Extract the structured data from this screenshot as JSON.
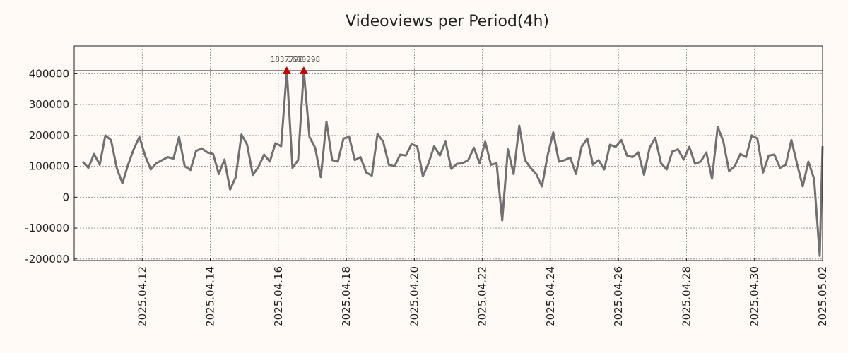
{
  "chart_data": {
    "type": "line",
    "title": "Videoviews per Period(4h)",
    "xlabel": "",
    "ylabel": "",
    "x_start": "2025.04.10 06:00",
    "x_step_hours": 4,
    "xlim": [
      "2025.04.10 00:00",
      "2025.05.02 00:00"
    ],
    "ylim": [
      -205000,
      490000
    ],
    "x_tick_labels": [
      "2025.04.12",
      "2025.04.14",
      "2025.04.16",
      "2025.04.18",
      "2025.04.20",
      "2025.04.22",
      "2025.04.24",
      "2025.04.26",
      "2025.04.28",
      "2025.04.30",
      "2025.05.02"
    ],
    "y_ticks": [
      400000,
      300000,
      200000,
      100000,
      0,
      -100000,
      -200000
    ],
    "y_tick_labels": [
      "400000",
      "300000",
      "200000",
      "100000",
      "0",
      "-100000",
      "-200000"
    ],
    "reference_line_y": 410000,
    "grid": true,
    "legend": "none",
    "series": [
      {
        "color": "#707070",
        "values": [
          115000,
          95000,
          140000,
          105000,
          200000,
          185000,
          95000,
          45000,
          105000,
          155000,
          195000,
          135000,
          90000,
          110000,
          120000,
          130000,
          125000,
          195000,
          100000,
          88000,
          150000,
          158000,
          145000,
          140000,
          75000,
          122000,
          25000,
          65000,
          203000,
          170000,
          72000,
          98000,
          138000,
          115000,
          175000,
          165000,
          410000,
          95000,
          120000,
          410000,
          195000,
          160000,
          65000,
          245000,
          120000,
          115000,
          190000,
          195000,
          120000,
          130000,
          80000,
          70000,
          205000,
          180000,
          105000,
          100000,
          138000,
          135000,
          172000,
          165000,
          68000,
          110000,
          165000,
          135000,
          180000,
          92000,
          108000,
          110000,
          120000,
          160000,
          110000,
          180000,
          105000,
          110000,
          -75000,
          155000,
          75000,
          232000,
          120000,
          95000,
          75000,
          35000,
          135000,
          210000,
          115000,
          120000,
          128000,
          75000,
          163000,
          190000,
          105000,
          120000,
          90000,
          170000,
          163000,
          185000,
          135000,
          130000,
          145000,
          72000,
          160000,
          192000,
          110000,
          90000,
          148000,
          155000,
          122000,
          163000,
          108000,
          115000,
          145000,
          60000,
          228000,
          180000,
          85000,
          100000,
          140000,
          130000,
          200000,
          190000,
          80000,
          135000,
          138000,
          95000,
          105000,
          185000,
          108000,
          35000,
          115000,
          60000,
          -190000,
          165000
        ]
      }
    ],
    "annotations": [
      {
        "text": "1837798",
        "x_index": 36,
        "y": 410000,
        "marker": "triangle-up",
        "color": "#cc0000"
      },
      {
        "text": "1600298",
        "x_index": 39,
        "y": 410000,
        "marker": "triangle-up",
        "color": "#cc0000"
      }
    ],
    "colors": {
      "background": "#fffaf5",
      "line": "#707070",
      "marker": "#cc0000",
      "grid": "#888888",
      "axis": "#222222"
    }
  }
}
